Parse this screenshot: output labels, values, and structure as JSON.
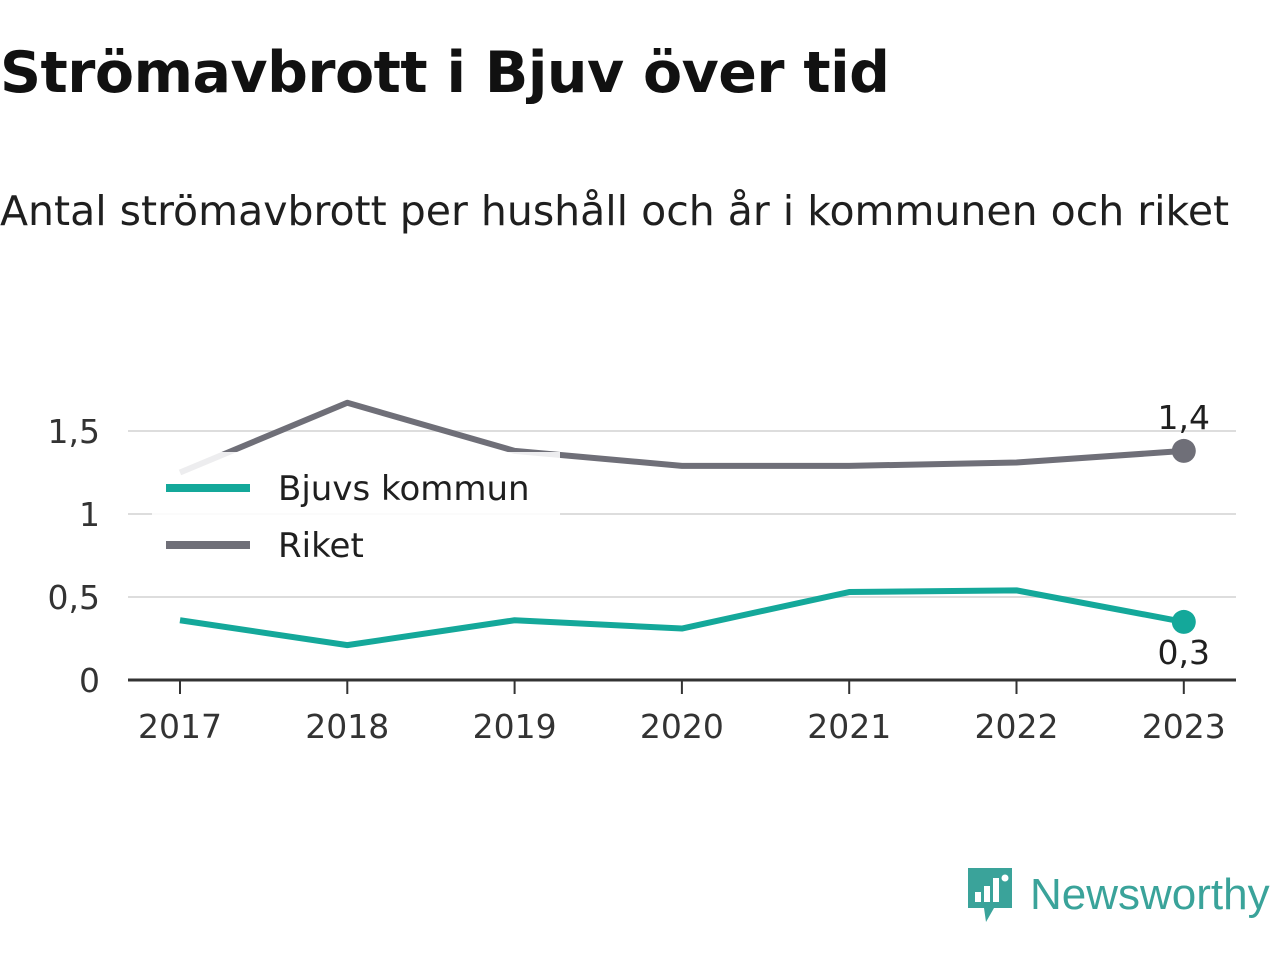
{
  "chart_data": {
    "type": "line",
    "title": "Strömavbrott i Bjuv över tid",
    "subtitle": "Antal strömavbrott per hushåll och år i kommunen och riket",
    "x": [
      "2017",
      "2018",
      "2019",
      "2020",
      "2021",
      "2022",
      "2023"
    ],
    "series": [
      {
        "name": "Bjuvs kommun",
        "color": "#14a89a",
        "values": [
          0.36,
          0.21,
          0.36,
          0.31,
          0.53,
          0.54,
          0.35
        ]
      },
      {
        "name": "Riket",
        "color": "#6f6f78",
        "values": [
          1.25,
          1.67,
          1.38,
          1.29,
          1.29,
          1.31,
          1.38
        ]
      }
    ],
    "y_ticks": [
      {
        "value": 0,
        "label": "0"
      },
      {
        "value": 0.5,
        "label": "0,5"
      },
      {
        "value": 1,
        "label": "1"
      },
      {
        "value": 1.5,
        "label": "1,5"
      }
    ],
    "ylim": [
      0,
      1.75
    ],
    "grid": true,
    "legend_position": "top-left",
    "end_labels": [
      {
        "series": "Riket",
        "label": "1,4",
        "position": "above"
      },
      {
        "series": "Bjuvs kommun",
        "label": "0,3",
        "position": "below"
      }
    ]
  },
  "brand": {
    "name": "Newsworthy",
    "color": "#3aa39a",
    "icon": "newsworthy-logo-icon"
  }
}
